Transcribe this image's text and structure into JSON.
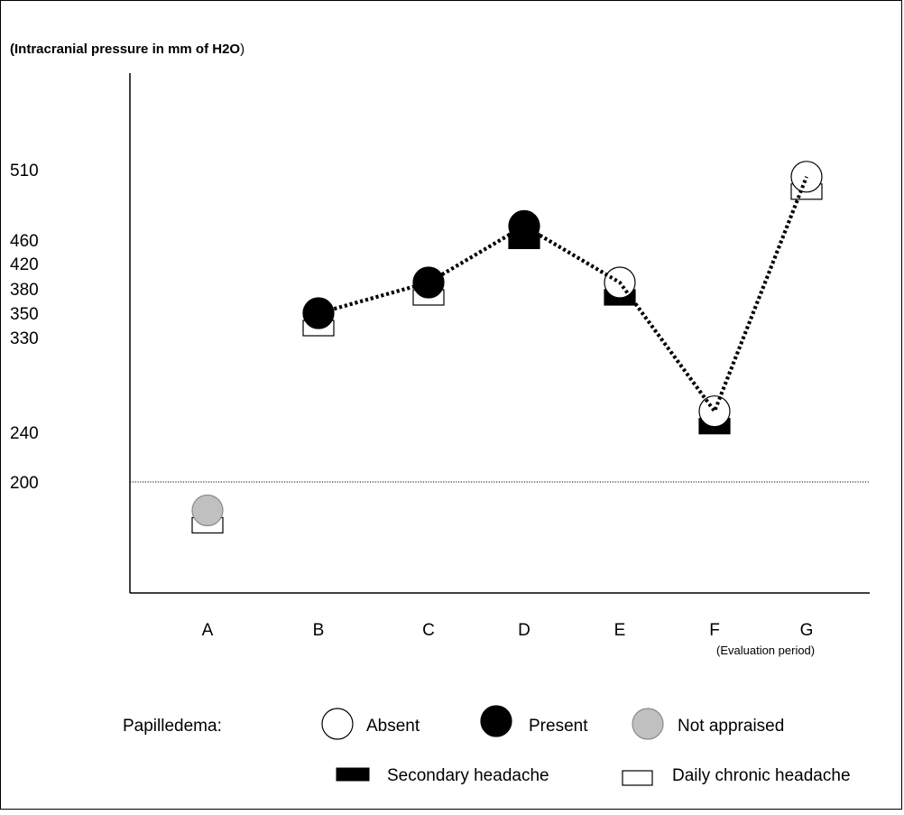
{
  "chart_data": {
    "type": "scatter",
    "ylabel": "Intracranial pressure in mm of H2O",
    "ylabel_bold_part": "(Intracranial pressure in mm of H2O",
    "ylabel_closing_paren": ")",
    "y_ticks": [
      510,
      460,
      420,
      380,
      350,
      330,
      240,
      200
    ],
    "y_tick_labels": [
      "510",
      "460",
      "420",
      "380",
      "350",
      "330",
      "240",
      "200"
    ],
    "reference_line": 200,
    "categories": [
      "A",
      "B",
      "C",
      "D",
      "E",
      "F",
      "G"
    ],
    "x_note": "(Evaluation period)",
    "x_note_category": "F",
    "pressure": [
      null,
      350,
      380,
      460,
      380,
      240,
      510
    ],
    "marker_y": [
      180,
      350,
      390,
      470,
      390,
      260,
      505
    ],
    "papilledema": [
      "not-appraised",
      "present",
      "present",
      "present",
      "absent",
      "absent",
      "absent"
    ],
    "headache": [
      "daily-chronic",
      "daily-chronic",
      "daily-chronic",
      "secondary",
      "secondary",
      "secondary",
      "daily-chronic"
    ],
    "connected_series": [
      "B",
      "C",
      "D",
      "E",
      "F",
      "G"
    ],
    "grid": false
  },
  "legend": {
    "papilledema_label": "Papilledema:",
    "absent_label": "Absent",
    "present_label": "Present",
    "not_appraised_label": "Not appraised",
    "secondary_label": "Secondary headache",
    "daily_chronic_label": "Daily chronic headache"
  },
  "colors": {
    "present": "#000000",
    "absent": "#ffffff",
    "not_appraised": "#c0c0c0",
    "not_appraised_stroke": "#8a8a8a",
    "line": "#000000"
  }
}
